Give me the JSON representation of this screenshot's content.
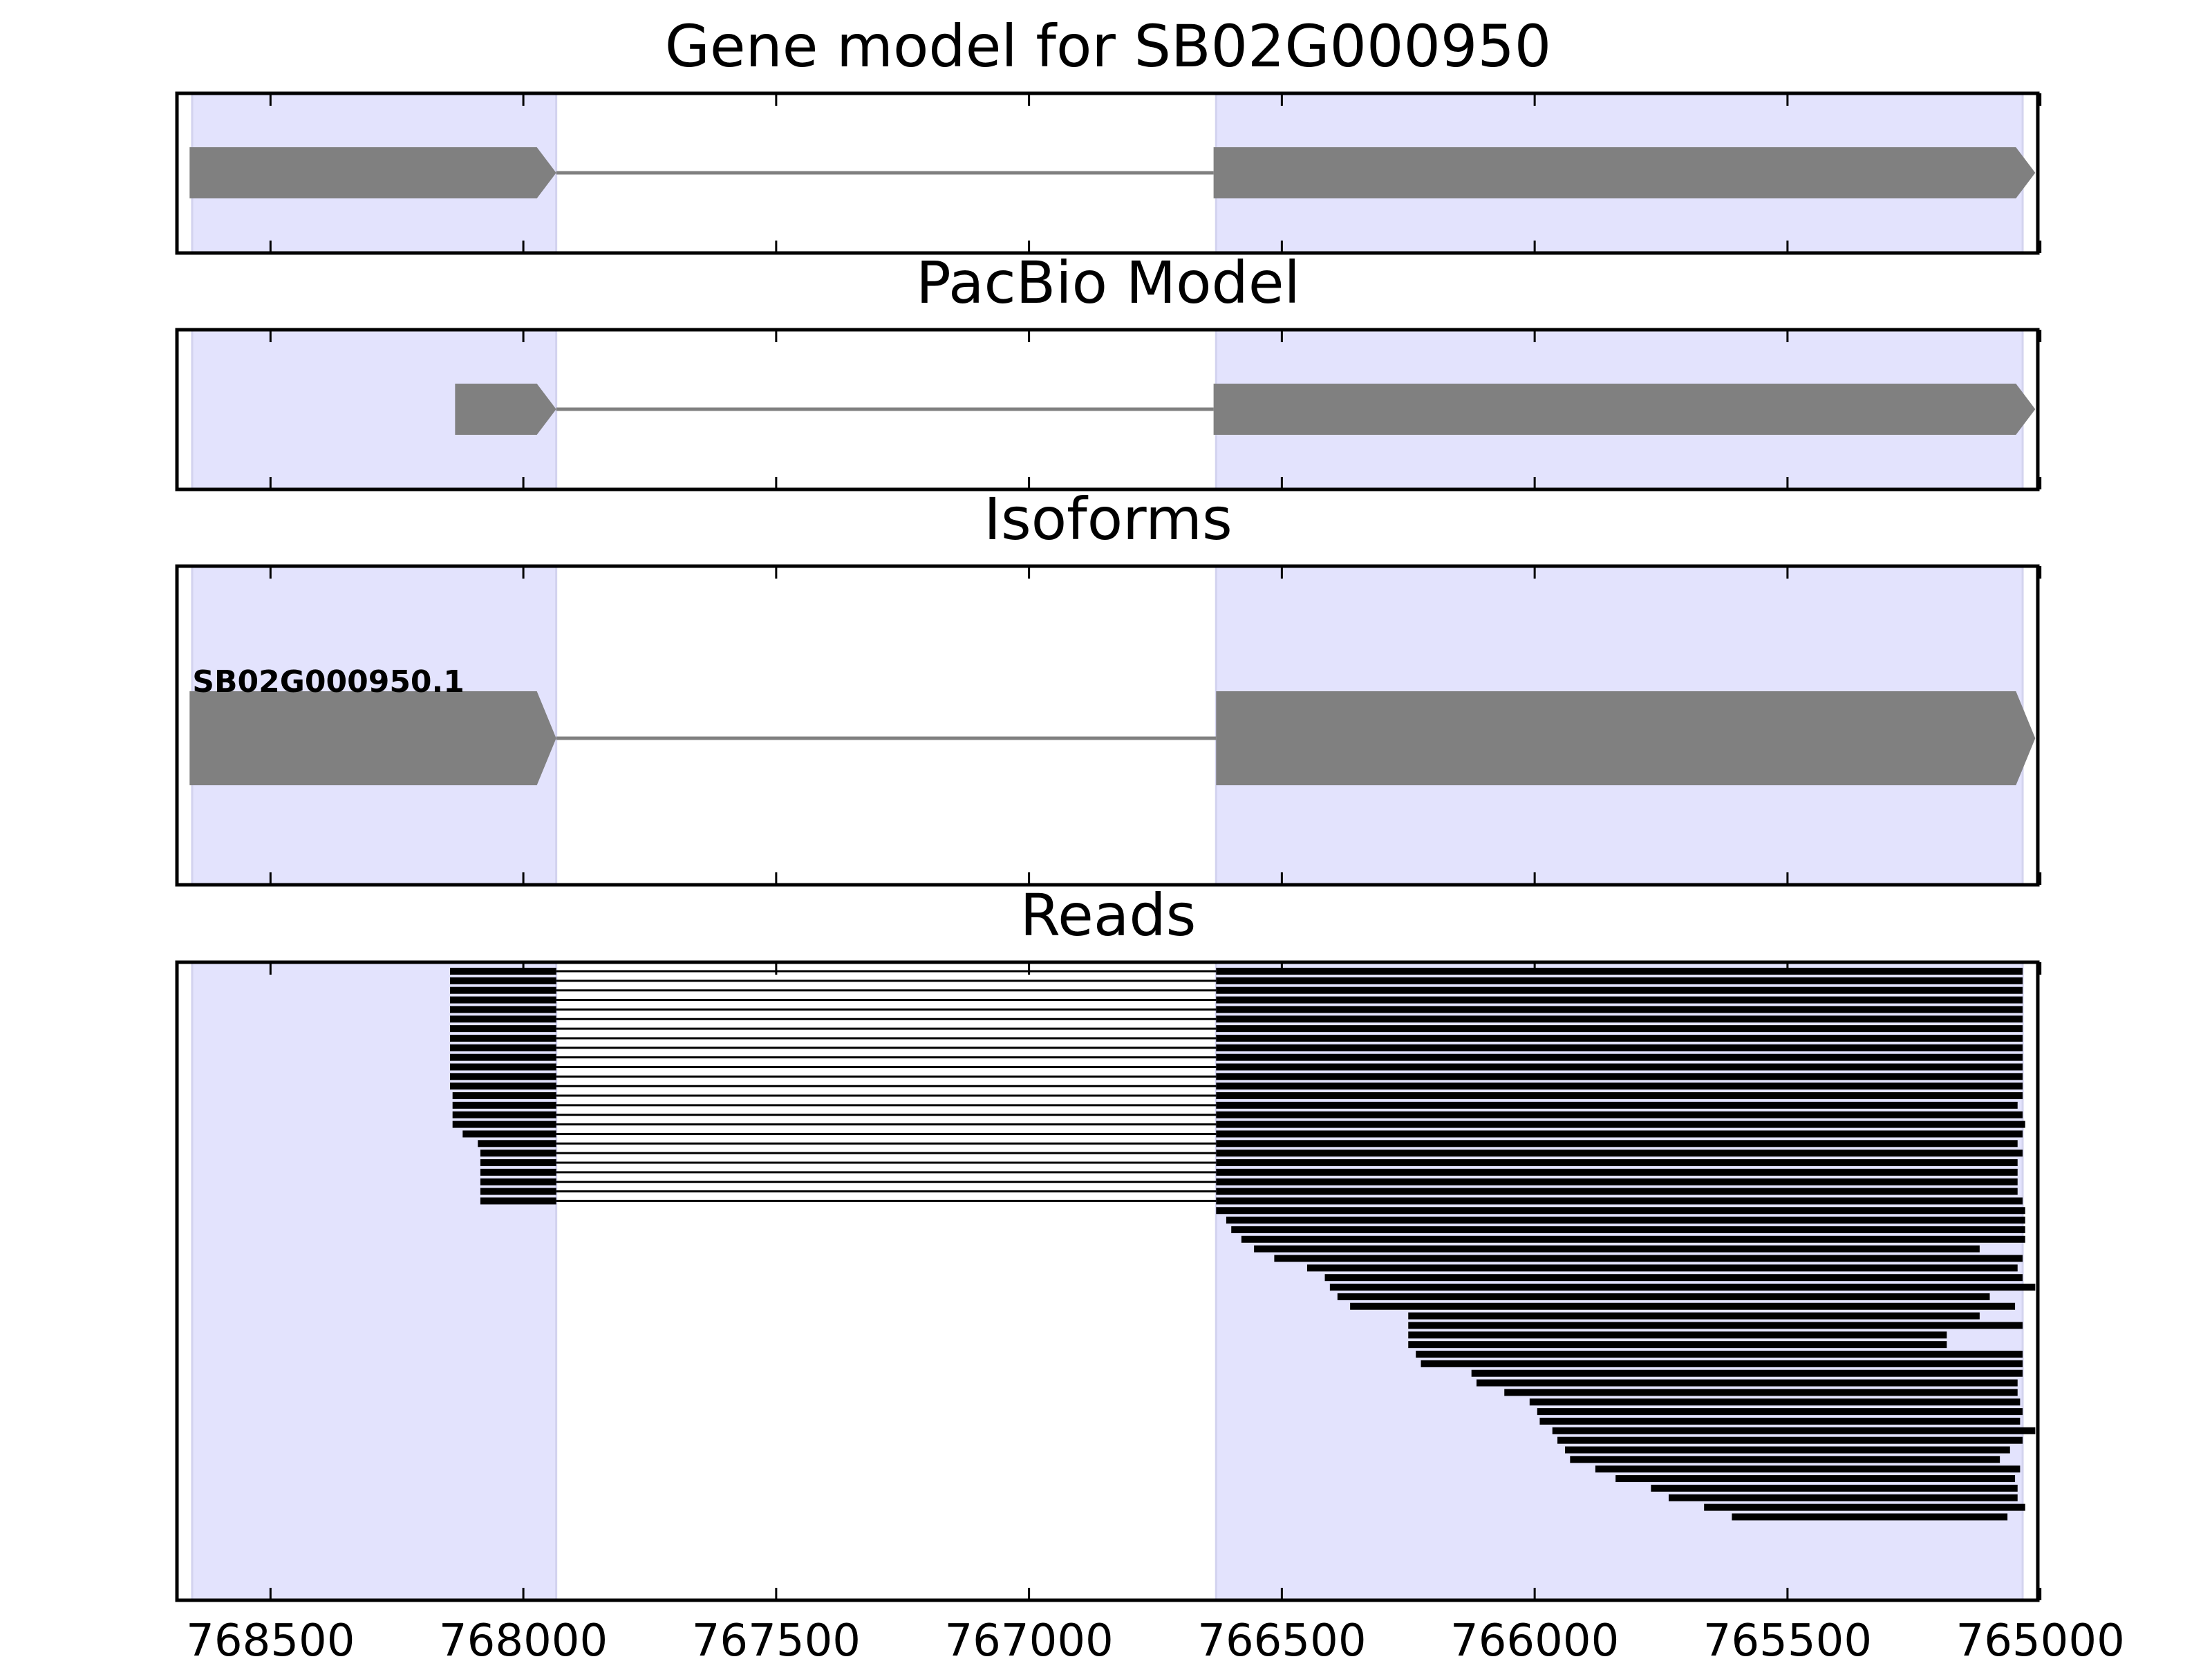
{
  "chart_data": {
    "type": "gene-track",
    "x_axis": {
      "reversed": true,
      "xlim": [
        768685,
        765005
      ],
      "ticks": [
        768500,
        768000,
        767500,
        767000,
        766500,
        766000,
        765500,
        765000
      ],
      "tick_labels": [
        "768500",
        "768000",
        "767500",
        "767000",
        "766500",
        "766000",
        "765500",
        "765000"
      ]
    },
    "exon_regions": [
      [
        768655,
        767935
      ],
      [
        766630,
        765035
      ]
    ],
    "region_color": "#e3e3fd",
    "feature_color": "#808080",
    "read_color": "#000000",
    "panels": [
      {
        "title": "Gene model for SB02G000950",
        "features": [
          {
            "exons": [
              [
                768660,
                767935
              ],
              [
                766635,
                765010
              ]
            ],
            "strand": "-",
            "label": ""
          }
        ]
      },
      {
        "title": "PacBio Model",
        "features": [
          {
            "exons": [
              [
                768135,
                767935
              ],
              [
                766635,
                765010
              ]
            ],
            "strand": "-",
            "label": ""
          }
        ]
      },
      {
        "title": "Isoforms",
        "features": [
          {
            "exons": [
              [
                768660,
                767935
              ],
              [
                766630,
                765010
              ]
            ],
            "strand": "-",
            "label": "SB02G000950.1"
          }
        ]
      },
      {
        "title": "Reads",
        "reads": [
          {
            "exons": [
              [
                768145,
                767935
              ],
              [
                766630,
                765035
              ]
            ]
          },
          {
            "exons": [
              [
                768145,
                767935
              ],
              [
                766630,
                765035
              ]
            ]
          },
          {
            "exons": [
              [
                768145,
                767935
              ],
              [
                766630,
                765035
              ]
            ]
          },
          {
            "exons": [
              [
                768145,
                767935
              ],
              [
                766630,
                765035
              ]
            ]
          },
          {
            "exons": [
              [
                768145,
                767935
              ],
              [
                766630,
                765035
              ]
            ]
          },
          {
            "exons": [
              [
                768145,
                767935
              ],
              [
                766630,
                765035
              ]
            ]
          },
          {
            "exons": [
              [
                768145,
                767935
              ],
              [
                766630,
                765035
              ]
            ]
          },
          {
            "exons": [
              [
                768145,
                767935
              ],
              [
                766630,
                765035
              ]
            ]
          },
          {
            "exons": [
              [
                768145,
                767935
              ],
              [
                766630,
                765035
              ]
            ]
          },
          {
            "exons": [
              [
                768145,
                767935
              ],
              [
                766630,
                765035
              ]
            ]
          },
          {
            "exons": [
              [
                768145,
                767935
              ],
              [
                766630,
                765035
              ]
            ]
          },
          {
            "exons": [
              [
                768145,
                767935
              ],
              [
                766630,
                765035
              ]
            ]
          },
          {
            "exons": [
              [
                768145,
                767935
              ],
              [
                766630,
                765035
              ]
            ]
          },
          {
            "exons": [
              [
                768140,
                767935
              ],
              [
                766630,
                765035
              ]
            ]
          },
          {
            "exons": [
              [
                768140,
                767935
              ],
              [
                766630,
                765045
              ]
            ]
          },
          {
            "exons": [
              [
                768140,
                767935
              ],
              [
                766630,
                765035
              ]
            ]
          },
          {
            "exons": [
              [
                768140,
                767935
              ],
              [
                766630,
                765030
              ]
            ]
          },
          {
            "exons": [
              [
                768120,
                767935
              ],
              [
                766630,
                765035
              ]
            ]
          },
          {
            "exons": [
              [
                768090,
                767935
              ],
              [
                766630,
                765045
              ]
            ]
          },
          {
            "exons": [
              [
                768085,
                767935
              ],
              [
                766630,
                765035
              ]
            ]
          },
          {
            "exons": [
              [
                768085,
                767935
              ],
              [
                766630,
                765045
              ]
            ]
          },
          {
            "exons": [
              [
                768085,
                767935
              ],
              [
                766630,
                765045
              ]
            ]
          },
          {
            "exons": [
              [
                768085,
                767935
              ],
              [
                766630,
                765045
              ]
            ]
          },
          {
            "exons": [
              [
                768085,
                767935
              ],
              [
                766630,
                765045
              ]
            ]
          },
          {
            "exons": [
              [
                768085,
                767935
              ],
              [
                766630,
                765035
              ]
            ]
          },
          {
            "exons": [
              [
                766630,
                765030
              ]
            ]
          },
          {
            "exons": [
              [
                766610,
                765030
              ]
            ]
          },
          {
            "exons": [
              [
                766600,
                765030
              ]
            ]
          },
          {
            "exons": [
              [
                766580,
                765030
              ]
            ]
          },
          {
            "exons": [
              [
                766555,
                765120
              ]
            ]
          },
          {
            "exons": [
              [
                766515,
                765035
              ]
            ]
          },
          {
            "exons": [
              [
                766450,
                765045
              ]
            ]
          },
          {
            "exons": [
              [
                766415,
                765035
              ]
            ]
          },
          {
            "exons": [
              [
                766405,
                765010
              ]
            ]
          },
          {
            "exons": [
              [
                766390,
                765100
              ]
            ]
          },
          {
            "exons": [
              [
                766365,
                765050
              ]
            ]
          },
          {
            "exons": [
              [
                766250,
                765120
              ]
            ]
          },
          {
            "exons": [
              [
                766250,
                765035
              ]
            ]
          },
          {
            "exons": [
              [
                766250,
                765185
              ]
            ]
          },
          {
            "exons": [
              [
                766250,
                765185
              ]
            ]
          },
          {
            "exons": [
              [
                766235,
                765035
              ]
            ]
          },
          {
            "exons": [
              [
                766225,
                765035
              ]
            ]
          },
          {
            "exons": [
              [
                766125,
                765035
              ]
            ]
          },
          {
            "exons": [
              [
                766115,
                765045
              ]
            ]
          },
          {
            "exons": [
              [
                766060,
                765045
              ]
            ]
          },
          {
            "exons": [
              [
                766010,
                765040
              ]
            ]
          },
          {
            "exons": [
              [
                765995,
                765035
              ]
            ]
          },
          {
            "exons": [
              [
                765990,
                765040
              ]
            ]
          },
          {
            "exons": [
              [
                765965,
                765010
              ]
            ]
          },
          {
            "exons": [
              [
                765955,
                765035
              ]
            ]
          },
          {
            "exons": [
              [
                765940,
                765060
              ]
            ]
          },
          {
            "exons": [
              [
                765930,
                765080
              ]
            ]
          },
          {
            "exons": [
              [
                765880,
                765040
              ]
            ]
          },
          {
            "exons": [
              [
                765840,
                765050
              ]
            ]
          },
          {
            "exons": [
              [
                765770,
                765045
              ]
            ]
          },
          {
            "exons": [
              [
                765735,
                765045
              ]
            ]
          },
          {
            "exons": [
              [
                765665,
                765030
              ]
            ]
          },
          {
            "exons": [
              [
                765610,
                765065
              ]
            ]
          }
        ]
      }
    ]
  }
}
